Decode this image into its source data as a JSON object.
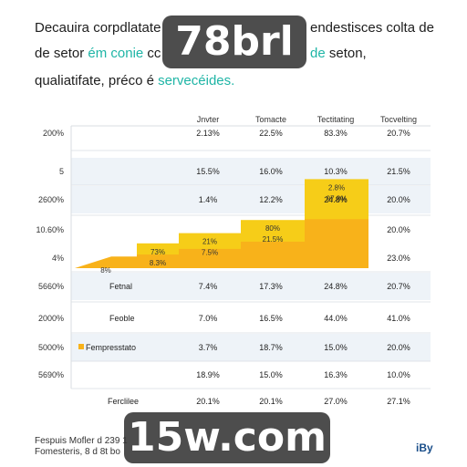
{
  "heading": {
    "line1_a": "Decauira corpdlatate pa",
    "line1_b": "endestisces colta de",
    "line2_a": "de setor ",
    "line2_accent": "ém conie",
    "line2_b": " cc",
    "line2_c_accent": "de",
    "line2_d": " seton,",
    "line3_a": "qualiatifate, préco é ",
    "line3_accent": "servecéides."
  },
  "watermarks": {
    "top": "78brl",
    "bottom": "15w.com"
  },
  "footer": {
    "line1": "Fespuis Mofler d 239 1",
    "line2": "Fomesteris, 8 d 8t bo",
    "brand": "iBy"
  },
  "colors": {
    "bar_light": "#f6cd18",
    "bar_dark": "#f8b21a",
    "band": "#eef3f8",
    "grid": "#d9dde2",
    "accent": "#1fb5a6"
  },
  "chart_data": {
    "type": "table",
    "columns": [
      "Jnvter",
      "Tomacte",
      "Tectitating",
      "Tocvelting"
    ],
    "row_labels": [
      "200%",
      "5",
      "2600%",
      "10.60%",
      "4%",
      "5660%",
      "2000%",
      "5000%",
      "5690%"
    ],
    "rows": [
      {
        "label": "",
        "values": [
          "2.13%",
          "22.5%",
          "83.3%",
          "20.7%"
        ]
      },
      {
        "label": "",
        "values": [
          "15.5%",
          "16.0%",
          "10.3%",
          "21.5%"
        ]
      },
      {
        "label": "",
        "values": [
          "1.4%",
          "12.2%",
          "24.8%",
          "20.0%"
        ]
      },
      {
        "label": "",
        "values": [
          "",
          "",
          "",
          "20.0%"
        ]
      },
      {
        "label": "",
        "values": [
          "",
          "",
          "",
          "23.0%"
        ]
      },
      {
        "label": "Fetnal",
        "values": [
          "7.4%",
          "17.3%",
          "24.8%",
          "20.7%"
        ]
      },
      {
        "label": "Feoble",
        "values": [
          "7.0%",
          "16.5%",
          "44.0%",
          "41.0%"
        ]
      },
      {
        "label": "Fempresstato",
        "values": [
          "3.7%",
          "18.7%",
          "15.0%",
          "20.0%"
        ]
      },
      {
        "label": "",
        "values": [
          "18.9%",
          "15.0%",
          "16.3%",
          "10.0%"
        ]
      }
    ],
    "bottom_row": {
      "label": "Ferclilee",
      "values": [
        "20.1%",
        "20.1%",
        "27.0%",
        "27.1%"
      ]
    },
    "bars": [
      {
        "label_a": "8%",
        "label_b": "",
        "value": 8
      },
      {
        "label_a": "73%",
        "label_b": "8.3%",
        "value": 17
      },
      {
        "label_a": "21%",
        "label_b": "7.5%",
        "value": 24
      },
      {
        "label_a": "80%",
        "label_b": "21.5%",
        "value": 33
      },
      {
        "label_a": "2.8%",
        "label_b": "97.8%",
        "value": 61
      }
    ]
  }
}
